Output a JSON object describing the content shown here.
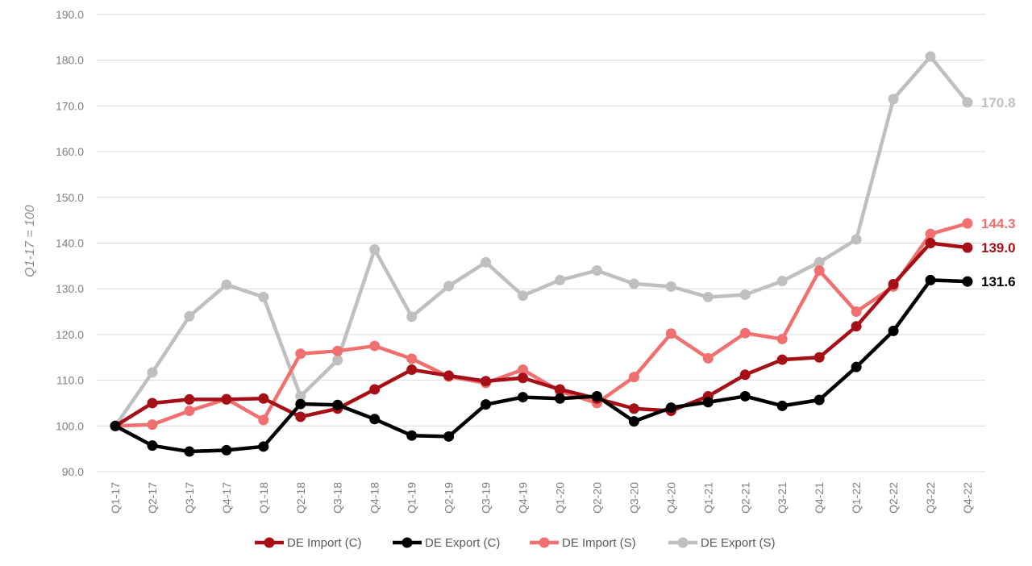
{
  "chart_data": {
    "type": "line",
    "ylabel": "Q1-17 = 100",
    "ylim": [
      90,
      190
    ],
    "ytick_step": 10,
    "ytick_labels": [
      "90.0",
      "100.0",
      "110.0",
      "120.0",
      "130.0",
      "140.0",
      "150.0",
      "160.0",
      "170.0",
      "180.0",
      "190.0"
    ],
    "grid": true,
    "legend_position": "bottom",
    "categories": [
      "Q1-17",
      "Q2-17",
      "Q3-17",
      "Q4-17",
      "Q1-18",
      "Q2-18",
      "Q3-18",
      "Q4-18",
      "Q1-19",
      "Q2-19",
      "Q3-19",
      "Q4-19",
      "Q1-20",
      "Q2-20",
      "Q3-20",
      "Q4-20",
      "Q1-21",
      "Q2-21",
      "Q3-21",
      "Q4-21",
      "Q1-22",
      "Q2-22",
      "Q3-22",
      "Q4-22"
    ],
    "series": [
      {
        "name": "DE Import (C)",
        "color": "#a50f15",
        "end_label": "139.0",
        "values": [
          100.0,
          105.0,
          105.8,
          105.8,
          106.0,
          102.0,
          103.8,
          108.0,
          112.3,
          111.0,
          109.8,
          110.5,
          108.0,
          106.0,
          103.8,
          103.3,
          106.5,
          111.2,
          114.5,
          115.0,
          121.8,
          131.0,
          140.0,
          139.0
        ]
      },
      {
        "name": "DE Export (C)",
        "color": "#000000",
        "end_label": "131.6",
        "values": [
          100.0,
          95.7,
          94.4,
          94.7,
          95.5,
          104.8,
          104.6,
          101.5,
          97.9,
          97.7,
          104.7,
          106.3,
          106.0,
          106.5,
          101.0,
          104.0,
          105.2,
          106.5,
          104.4,
          105.7,
          112.9,
          120.8,
          131.9,
          131.6
        ]
      },
      {
        "name": "DE Import (S)",
        "color": "#f07070",
        "end_label": "144.3",
        "values": [
          100.0,
          100.3,
          103.3,
          105.9,
          101.3,
          115.8,
          116.4,
          117.5,
          114.7,
          110.8,
          109.4,
          112.3,
          107.6,
          105.0,
          110.7,
          120.2,
          114.8,
          120.3,
          119.0,
          134.0,
          125.0,
          130.5,
          142.0,
          144.3
        ]
      },
      {
        "name": "DE Export (S)",
        "color": "#bfbfbf",
        "end_label": "170.8",
        "values": [
          100.0,
          111.7,
          124.0,
          130.9,
          128.2,
          106.5,
          114.4,
          138.6,
          123.9,
          130.6,
          135.8,
          128.5,
          131.9,
          134.0,
          131.1,
          130.5,
          128.2,
          128.7,
          131.7,
          135.8,
          140.8,
          171.5,
          180.8,
          170.8
        ]
      }
    ]
  }
}
